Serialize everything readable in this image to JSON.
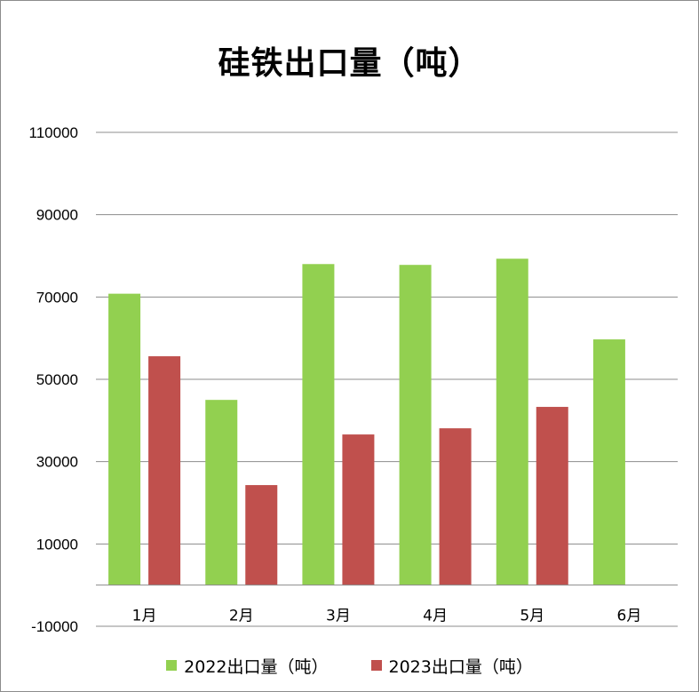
{
  "chart_data": {
    "type": "bar",
    "title": "硅铁出口量（吨）",
    "xlabel": "",
    "ylabel": "",
    "categories": [
      "1月",
      "2月",
      "3月",
      "4月",
      "5月",
      "6月"
    ],
    "series": [
      {
        "name": "2022出口量（吨）",
        "color": "#92d050",
        "values": [
          70800,
          45000,
          78000,
          77800,
          79300,
          59700
        ]
      },
      {
        "name": "2023出口量（吨）",
        "color": "#c0504d",
        "values": [
          55600,
          24300,
          36600,
          38100,
          43300,
          null
        ]
      }
    ],
    "ylim": [
      -10000,
      110000
    ],
    "yticks": [
      -10000,
      10000,
      30000,
      50000,
      70000,
      90000,
      110000
    ],
    "yticklabels": [
      "-10000",
      "10000",
      "30000",
      "50000",
      "70000",
      "90000",
      "110000"
    ],
    "grid": true,
    "legend": "bottom"
  }
}
